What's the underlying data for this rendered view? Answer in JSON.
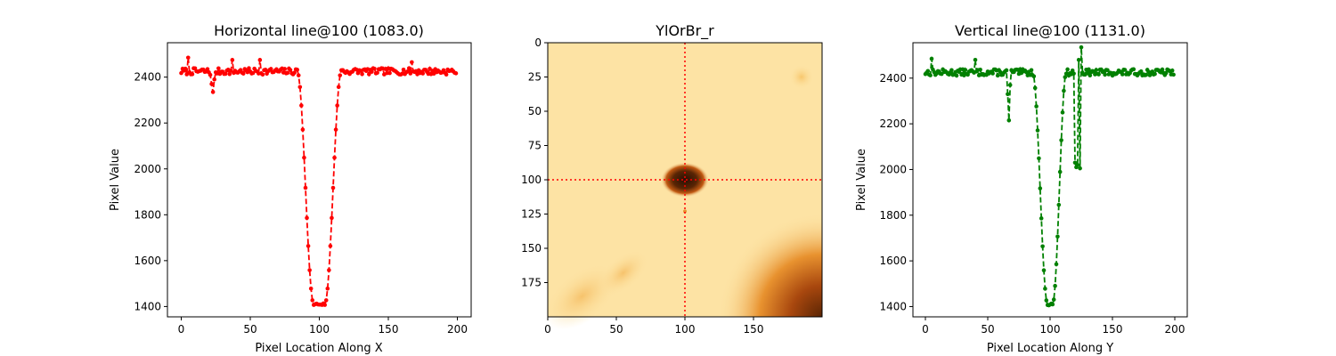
{
  "chart_data": [
    {
      "type": "line",
      "title": "Horizontal line@100 (1083.0)",
      "xlabel": "Pixel Location Along X",
      "ylabel": "Pixel Value",
      "xlim": [
        -10,
        210
      ],
      "ylim": [
        1355,
        2550
      ],
      "xticks": [
        0,
        50,
        100,
        150,
        200
      ],
      "yticks": [
        1400,
        1600,
        1800,
        2000,
        2200,
        2400
      ],
      "color": "#ff0000",
      "linestyle": "dashed",
      "marker": "circle",
      "profile": {
        "baseline": 2425,
        "min": 1410,
        "dip_start": 84,
        "dip_end": 116,
        "flat_start": 96,
        "flat_end": 104,
        "noise": 14,
        "seed": 7,
        "extra_points": [
          [
            21,
            2410
          ],
          [
            22,
            2370
          ],
          [
            23,
            2335
          ],
          [
            24,
            2390
          ],
          [
            5,
            2485
          ],
          [
            37,
            2475
          ],
          [
            57,
            2475
          ],
          [
            167,
            2465
          ]
        ]
      },
      "grid": false
    },
    {
      "type": "heatmap",
      "title": "YlOrBr_r",
      "colormap": "YlOrBr_r",
      "xlim": [
        0,
        200
      ],
      "ylim": [
        200,
        0
      ],
      "xticks": [
        0,
        50,
        100,
        150
      ],
      "yticks": [
        0,
        25,
        50,
        75,
        100,
        125,
        150,
        175
      ],
      "crosshair": {
        "x": 100,
        "y": 100,
        "color": "#ff0000"
      },
      "spot": {
        "x": 100,
        "y": 100,
        "rx": 11,
        "ry": 8
      },
      "grid": false
    },
    {
      "type": "line",
      "title": "Vertical line@100 (1131.0)",
      "xlabel": "Pixel Location Along Y",
      "ylabel": "Pixel Value",
      "xlim": [
        -10,
        210
      ],
      "ylim": [
        1355,
        2555
      ],
      "xticks": [
        0,
        50,
        100,
        150,
        200
      ],
      "yticks": [
        1400,
        1600,
        1800,
        2000,
        2200,
        2400
      ],
      "color": "#008000",
      "linestyle": "dashed",
      "marker": "circle",
      "profile": {
        "baseline": 2425,
        "min": 1410,
        "dip_start": 86,
        "dip_end": 113,
        "flat_start": 98,
        "flat_end": 102,
        "noise": 14,
        "seed": 13,
        "extra_points": [
          [
            66,
            2330
          ],
          [
            67,
            2215
          ],
          [
            68,
            2370
          ],
          [
            119,
            2420
          ],
          [
            120,
            2030
          ],
          [
            121,
            2010
          ],
          [
            122,
            2020
          ],
          [
            123,
            2480
          ],
          [
            124,
            2005
          ],
          [
            125,
            2535
          ],
          [
            5,
            2485
          ],
          [
            40,
            2480
          ]
        ]
      },
      "grid": false
    }
  ]
}
